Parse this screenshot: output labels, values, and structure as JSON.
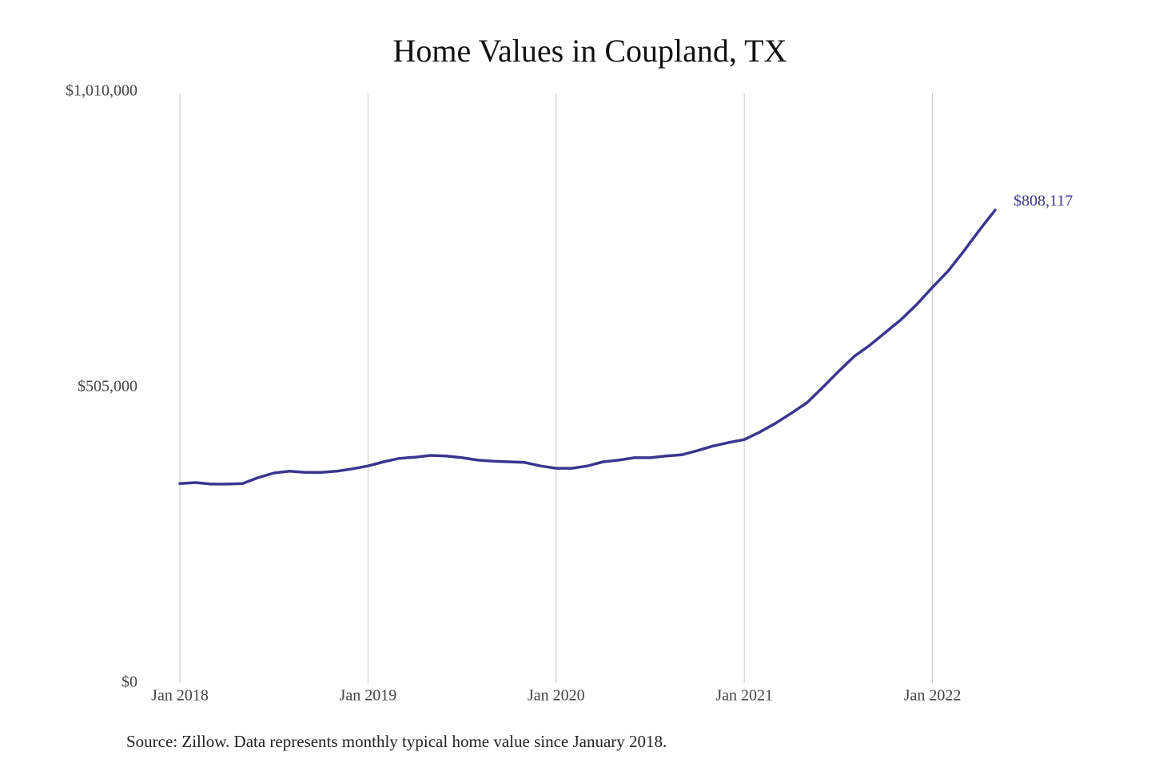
{
  "chart_data": {
    "type": "line",
    "title": "Home Values in Coupland, TX",
    "source": "Source: Zillow. Data represents monthly typical home value since January 2018.",
    "x": [
      "2018-01",
      "2018-02",
      "2018-03",
      "2018-04",
      "2018-05",
      "2018-06",
      "2018-07",
      "2018-08",
      "2018-09",
      "2018-10",
      "2018-11",
      "2018-12",
      "2019-01",
      "2019-02",
      "2019-03",
      "2019-04",
      "2019-05",
      "2019-06",
      "2019-07",
      "2019-08",
      "2019-09",
      "2019-10",
      "2019-11",
      "2019-12",
      "2020-01",
      "2020-02",
      "2020-03",
      "2020-04",
      "2020-05",
      "2020-06",
      "2020-07",
      "2020-08",
      "2020-09",
      "2020-10",
      "2020-11",
      "2020-12",
      "2021-01",
      "2021-02",
      "2021-03",
      "2021-04",
      "2021-05",
      "2021-06",
      "2021-07",
      "2021-08",
      "2021-09",
      "2021-10",
      "2021-11",
      "2021-12",
      "2022-01",
      "2022-02",
      "2022-03",
      "2022-04",
      "2022-05"
    ],
    "series": [
      {
        "name": "Typical home value",
        "color": "#3b3590",
        "values": [
          341000,
          342600,
          340000,
          340000,
          341000,
          351000,
          359000,
          362000,
          360000,
          360000,
          362000,
          366000,
          371000,
          378000,
          384000,
          386000,
          389000,
          388000,
          385000,
          381000,
          379000,
          378000,
          377000,
          371000,
          367000,
          367000,
          371000,
          378000,
          381000,
          385000,
          385000,
          388000,
          390000,
          397000,
          405000,
          411000,
          416000,
          429000,
          444000,
          461000,
          479000,
          505000,
          532000,
          558000,
          577000,
          599000,
          621000,
          647000,
          676000,
          704000,
          738000,
          774000,
          808117
        ]
      }
    ],
    "end_label": "$808,117",
    "ylim": [
      0,
      1010000
    ],
    "yticks": [
      {
        "value": 0,
        "label": "$0"
      },
      {
        "value": 505000,
        "label": "$505,000"
      },
      {
        "value": 1010000,
        "label": "$1,010,000"
      }
    ],
    "xticks": [
      {
        "value": "2018-01",
        "label": "Jan 2018"
      },
      {
        "value": "2019-01",
        "label": "Jan 2019"
      },
      {
        "value": "2020-01",
        "label": "Jan 2020"
      },
      {
        "value": "2021-01",
        "label": "Jan 2021"
      },
      {
        "value": "2022-01",
        "label": "Jan 2022"
      }
    ],
    "grid": "x"
  }
}
